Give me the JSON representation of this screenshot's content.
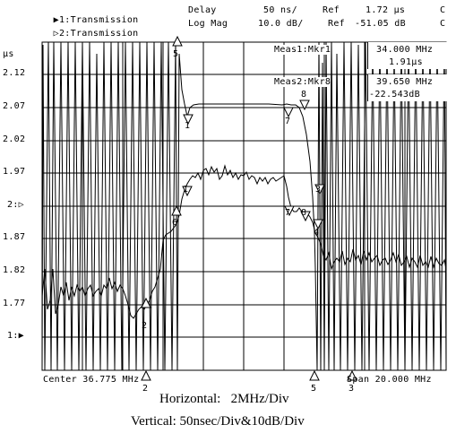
{
  "header": {
    "channel1": {
      "arrow": "▶1:",
      "name": "Transmission",
      "format": "Delay",
      "scale": "50 ns/",
      "ref_label": "Ref",
      "ref_value": "1.72 µs",
      "flag": "C"
    },
    "channel2": {
      "arrow": "▷2:",
      "name": "Transmission",
      "format": "Log Mag",
      "scale": "10.0 dB/",
      "ref_label": "Ref",
      "ref_value": "-51.05 dB",
      "flag": "C"
    }
  },
  "y_axis": {
    "unit": "µs",
    "ticks": [
      "2.12",
      "2.07",
      "2.02",
      "1.97",
      "2:▷",
      "1.87",
      "1.82",
      "1.77",
      "1:▶"
    ]
  },
  "measurements": {
    "meas1": {
      "label": "Meas1:Mkr1",
      "value1": "34.000 MHz",
      "value2": "1.91µs"
    },
    "meas2": {
      "label": "Meas2:Mkr8",
      "value1": "39.650 MHz",
      "value2": "-22.543dB"
    }
  },
  "footer": {
    "center": "Center 36.775 MHz",
    "span": "Span 20.000 MHz"
  },
  "captions": {
    "horizontal": "Horizontal:   2MHz/Div",
    "vertical": "Vertical: 50nsec/Div&10dB/Div"
  },
  "chart_data": {
    "type": "line",
    "x_center_mhz": 36.775,
    "x_span_mhz": 20.0,
    "series": [
      {
        "name": "1:Transmission",
        "format": "Delay",
        "ref": "1.72 µs",
        "scale_per_div": "50 ns"
      },
      {
        "name": "2:Transmission",
        "format": "Log Mag",
        "ref": "-51.05 dB",
        "scale_per_div": "10.0 dB"
      }
    ],
    "markers": [
      {
        "label": "1",
        "freq_mhz": 34.0,
        "value": "1.91µs"
      },
      {
        "label": "8",
        "freq_mhz": 39.65,
        "value": "-22.543dB"
      }
    ],
    "grid": true
  }
}
